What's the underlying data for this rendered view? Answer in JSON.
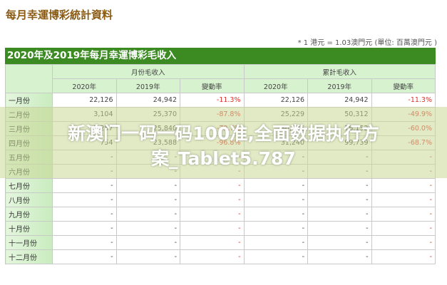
{
  "title": "每月幸運博彩統計資料",
  "note": "* 1 港元 = 1.03澳門元 (單位: 百萬澳門元 )",
  "table": {
    "caption": "2020年及2019年每月幸運博彩毛收入",
    "group_monthly": "月份毛收入",
    "group_cumulative": "累計毛收入",
    "cols": [
      "2020年",
      "2019年",
      "變動率",
      "2020年",
      "2019年",
      "變動率"
    ],
    "rows": [
      {
        "month": "一月份",
        "v": [
          "22,126",
          "24,942",
          "-11.3%",
          "22,126",
          "24,942",
          "-11.3%"
        ]
      },
      {
        "month": "二月份",
        "v": [
          "3,104",
          "25,370",
          "-87.8%",
          "25,229",
          "50,312",
          "-49.9%"
        ]
      },
      {
        "month": "三月份",
        "v": [
          "5,257",
          "25,840",
          "-79.7%",
          "30,486",
          "76,152",
          "-60.0%"
        ]
      },
      {
        "month": "四月份",
        "v": [
          "754",
          "23,588",
          "-96.8%",
          "31,240",
          "99,739",
          "-68.7%"
        ]
      },
      {
        "month": "五月份",
        "v": [
          "-",
          "-",
          "-",
          "-",
          "-",
          "-"
        ]
      },
      {
        "month": "六月份",
        "v": [
          "-",
          "-",
          "-",
          "-",
          "-",
          "-"
        ]
      },
      {
        "month": "七月份",
        "v": [
          "-",
          "-",
          "-",
          "-",
          "-",
          "-"
        ]
      },
      {
        "month": "八月份",
        "v": [
          "-",
          "-",
          "-",
          "-",
          "-",
          "-"
        ]
      },
      {
        "month": "九月份",
        "v": [
          "-",
          "-",
          "-",
          "-",
          "-",
          "-"
        ]
      },
      {
        "month": "十月份",
        "v": [
          "-",
          "-",
          "-",
          "-",
          "-",
          "-"
        ]
      },
      {
        "month": "十一月份",
        "v": [
          "-",
          "-",
          "-",
          "-",
          "-",
          "-"
        ]
      },
      {
        "month": "十二月份",
        "v": [
          "-",
          "-",
          "-",
          "-",
          "-",
          "-"
        ]
      }
    ]
  },
  "watermark": {
    "line1": "新澳门一码一码100准,全面数据执行方",
    "line2": "案_Tablet5.787"
  }
}
